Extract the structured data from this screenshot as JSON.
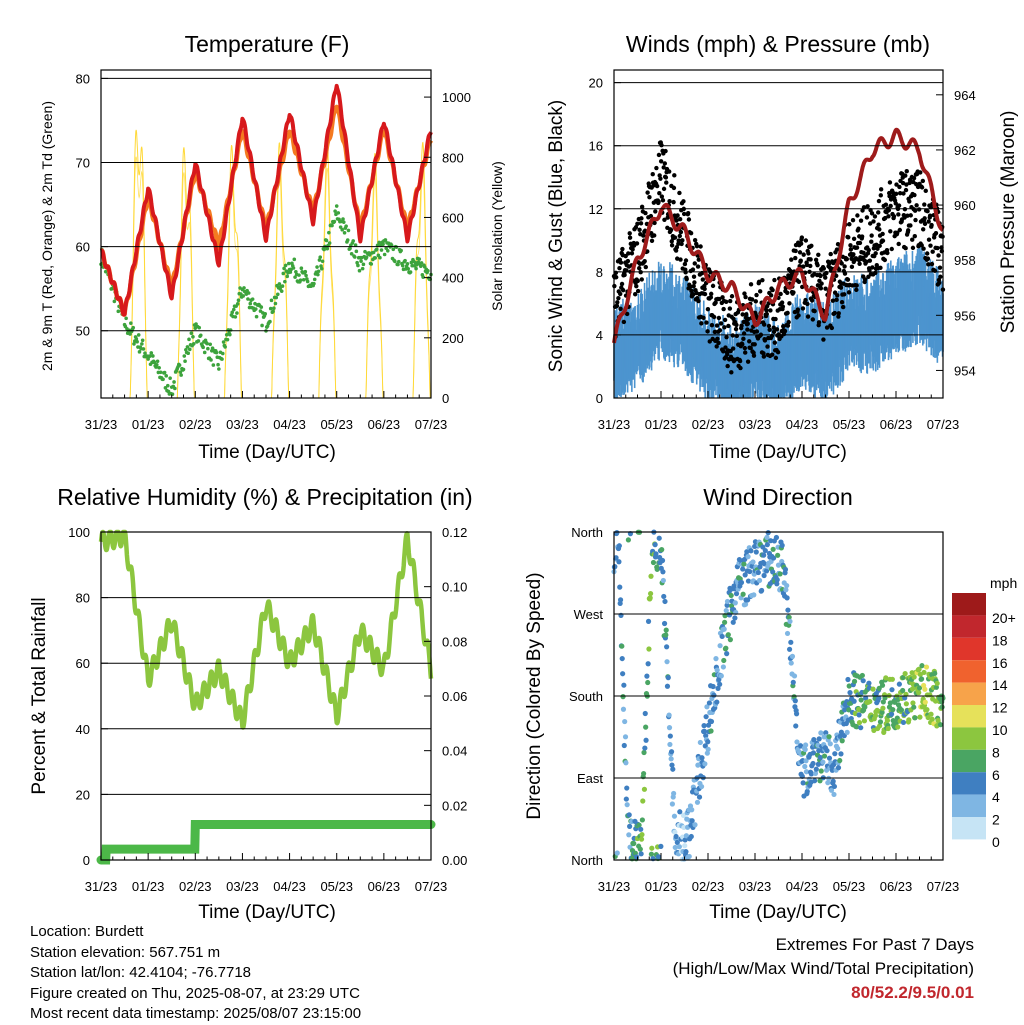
{
  "x_ticks": [
    "31/23",
    "01/23",
    "02/23",
    "03/23",
    "04/23",
    "05/23",
    "06/23",
    "07/23"
  ],
  "panels": {
    "temperature": {
      "title": "Temperature (F)",
      "xlabel": "Time (Day/UTC)",
      "ylabel_left": "2m & 9m T (Red, Orange) & 2m Td (Green)",
      "ylabel_right": "Solar Insolation (Yellow)",
      "left_ticks": [
        "50",
        "60",
        "70",
        "80"
      ],
      "right_ticks": [
        "0",
        "200",
        "400",
        "600",
        "800",
        "1000"
      ]
    },
    "winds": {
      "title": "Winds (mph) & Pressure (mb)",
      "xlabel": "Time (Day/UTC)",
      "ylabel_left": "Sonic Wind & Gust (Blue, Black)",
      "ylabel_right": "Station Pressure (Maroon)",
      "left_ticks": [
        "0",
        "4",
        "8",
        "12",
        "16",
        "20"
      ],
      "right_ticks": [
        "954",
        "956",
        "958",
        "960",
        "962",
        "964"
      ]
    },
    "humidity": {
      "title": "Relative Humidity (%) & Precipitation (in)",
      "xlabel": "Time (Day/UTC)",
      "ylabel_left": "Percent & Total Rainfall",
      "left_ticks": [
        "0",
        "20",
        "40",
        "60",
        "80",
        "100"
      ],
      "right_ticks": [
        "0.00",
        "0.02",
        "0.04",
        "0.06",
        "0.08",
        "0.10",
        "0.12"
      ]
    },
    "direction": {
      "title": "Wind Direction",
      "xlabel": "Time (Day/UTC)",
      "ylabel_left": "Direction (Colored By Speed)",
      "left_ticks": [
        "North",
        "East",
        "South",
        "West",
        "North"
      ],
      "legend_title": "mph",
      "legend_labels": [
        "20+",
        "18",
        "16",
        "14",
        "12",
        "10",
        "8",
        "6",
        "4",
        "2",
        "0"
      ],
      "legend_colors": [
        "#9e1a1a",
        "#c1272d",
        "#e0362b",
        "#f0622e",
        "#f7a34a",
        "#e6e15a",
        "#8cc63f",
        "#4aa563",
        "#3f7fc1",
        "#7fb6e3",
        "#c6e4f5"
      ]
    }
  },
  "info": {
    "location": "Location: Burdett",
    "elevation": "Station elevation: 567.751 m",
    "latlon": "Station lat/lon: 42.4104; -76.7718",
    "created": "Figure created on Thu, 2025-08-07, at 23:29 UTC",
    "recent": "Most recent data timestamp: 2025/08/07 23:15:00"
  },
  "extremes": {
    "title": "Extremes For Past 7 Days",
    "subtitle": "(High/Low/Max Wind/Total Precipitation)",
    "values": "80/52.2/9.5/0.01"
  },
  "chart_data": [
    {
      "type": "line",
      "title": "Temperature (F)",
      "xlabel": "Time (Day/UTC)",
      "ylabel": "2m & 9m T (Red, Orange) & 2m Td (Green)",
      "y2label": "Solar Insolation (Yellow)",
      "x": [
        0,
        0.5,
        1,
        1.5,
        2,
        2.5,
        3,
        3.5,
        4,
        4.5,
        5,
        5.5,
        6,
        6.5,
        7
      ],
      "ylim": [
        42,
        81
      ],
      "y2lim": [
        0,
        1090
      ],
      "series": [
        {
          "color": "#d7191c",
          "values": [
            59.5,
            52,
            67,
            54,
            70,
            58,
            75.5,
            61,
            76,
            63,
            79.5,
            61,
            75,
            61,
            74
          ]
        },
        {
          "color": "#f47a20",
          "values": [
            59.5,
            52,
            66,
            55,
            69,
            60,
            74,
            62,
            74,
            64,
            77,
            62,
            74,
            62,
            73
          ]
        },
        {
          "color": "#3ca33c",
          "values": [
            59,
            51,
            47,
            43,
            50,
            46,
            55,
            51,
            58,
            55,
            64,
            58,
            60,
            58,
            57
          ]
        },
        {
          "color": "#ffd93a",
          "axis": "right",
          "values": [
            0,
            0,
            1060,
            0,
            920,
            0,
            880,
            0,
            860,
            0,
            850,
            0,
            820,
            0,
            880
          ]
        }
      ]
    },
    {
      "type": "line",
      "title": "Winds (mph) & Pressure (mb)",
      "xlabel": "Time (Day/UTC)",
      "ylabel": "Sonic Wind & Gust (Blue, Black)",
      "y2label": "Station Pressure (Maroon)",
      "x": [
        0,
        0.5,
        1,
        1.5,
        2,
        2.5,
        3,
        3.5,
        4,
        4.5,
        5,
        5.5,
        6,
        6.5,
        7
      ],
      "ylim": [
        0,
        20.8
      ],
      "y2lim": [
        953,
        964.9
      ],
      "series": [
        {
          "color": "#4c94cf",
          "values": [
            3,
            4,
            6,
            5,
            3,
            2,
            3,
            2,
            4,
            3,
            5,
            5,
            6,
            7,
            5
          ]
        },
        {
          "color": "#000000",
          "values": [
            6,
            9,
            14,
            10,
            6,
            4,
            5,
            5,
            8,
            6,
            9,
            10,
            12,
            12,
            9
          ]
        },
        {
          "color": "#9e1b1b",
          "axis": "right",
          "values": [
            955,
            958,
            960,
            959,
            957.5,
            957,
            955.8,
            957,
            957.5,
            956,
            960,
            962,
            962.5,
            962,
            959
          ]
        }
      ]
    },
    {
      "type": "line",
      "title": "Relative Humidity (%) & Precipitation (in)",
      "xlabel": "Time (Day/UTC)",
      "ylabel": "Percent & Total Rainfall",
      "x": [
        0,
        0.5,
        1,
        1.5,
        2,
        2.5,
        3,
        3.5,
        4,
        4.5,
        5,
        5.5,
        6,
        6.5,
        7
      ],
      "ylim": [
        0,
        100
      ],
      "y2lim": [
        0,
        0.12
      ],
      "series": [
        {
          "color": "#8cc63f",
          "values": [
            97,
            99,
            55,
            73,
            47,
            58,
            42,
            78,
            60,
            72,
            44,
            70,
            58,
            98,
            58
          ]
        },
        {
          "color": "#4cb848",
          "axis": "right",
          "values": [
            0,
            0.004,
            0.004,
            0.004,
            0.013,
            0.013,
            0.013,
            0.013,
            0.013,
            0.013,
            0.013,
            0.013,
            0.013,
            0.013,
            0.013
          ]
        }
      ]
    },
    {
      "type": "scatter",
      "title": "Wind Direction",
      "xlabel": "Time (Day/UTC)",
      "ylabel": "Direction (Colored By Speed)",
      "y_categories": [
        "North",
        "East",
        "South",
        "West",
        "North"
      ],
      "ylim": [
        0,
        360
      ],
      "series": [
        {
          "name": "direction",
          "x": [
            0.1,
            0.3,
            0.6,
            0.8,
            1.0,
            1.3,
            1.6,
            2.0,
            2.3,
            2.6,
            3.0,
            3.3,
            3.6,
            4.0,
            4.3,
            4.7,
            5.0,
            5.4,
            5.8,
            6.2,
            6.6,
            6.9
          ],
          "values": [
            340,
            20,
            30,
            345,
            350,
            20,
            30,
            150,
            230,
            300,
            320,
            330,
            320,
            90,
            120,
            100,
            180,
            170,
            170,
            180,
            185,
            175
          ],
          "speeds": [
            4,
            4,
            6,
            6,
            5,
            2,
            3,
            3,
            4,
            4,
            3,
            4,
            4,
            3,
            4,
            3,
            5,
            6,
            7,
            6,
            8,
            7
          ]
        }
      ]
    }
  ]
}
